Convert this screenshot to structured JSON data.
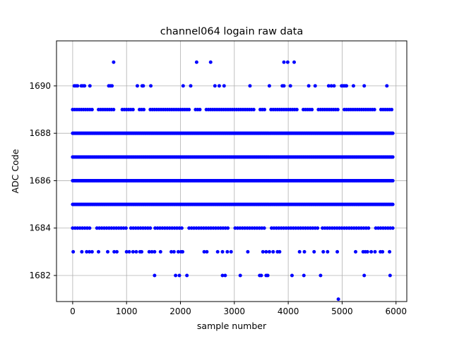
{
  "chart_data": {
    "type": "scatter",
    "title": "channel064 logain raw data",
    "xlabel": "sample number",
    "ylabel": "ADC Code",
    "xlim": [
      -300,
      6200
    ],
    "ylim": [
      1680.9,
      1691.9
    ],
    "xticks": [
      0,
      1000,
      2000,
      3000,
      4000,
      5000,
      6000
    ],
    "yticks": [
      1682,
      1684,
      1686,
      1688,
      1690
    ],
    "grid": true,
    "marker": "circle",
    "series": [
      {
        "color": "#0000ff",
        "dense_levels": [
          {
            "y": 1684,
            "x_start": 0,
            "x_end": 5940,
            "step": 45,
            "gaps": [
              [
                330,
                420
              ],
              [
                1000,
                1060
              ],
              [
                1470,
                1510
              ],
              [
                2070,
                2150
              ],
              [
                2900,
                2970
              ],
              [
                3600,
                3660
              ],
              [
                4580,
                4630
              ],
              [
                5530,
                5580
              ]
            ]
          },
          {
            "y": 1685,
            "x_start": 0,
            "x_end": 5940,
            "step": 20,
            "gaps": []
          },
          {
            "y": 1686,
            "x_start": 0,
            "x_end": 5940,
            "step": 20,
            "gaps": []
          },
          {
            "y": 1687,
            "x_start": 0,
            "x_end": 5940,
            "step": 20,
            "gaps": []
          },
          {
            "y": 1688,
            "x_start": 0,
            "x_end": 5940,
            "step": 20,
            "gaps": []
          },
          {
            "y": 1689,
            "x_start": 0,
            "x_end": 5940,
            "step": 40,
            "gaps": [
              [
                380,
                460
              ],
              [
                770,
                880
              ],
              [
                1160,
                1230
              ],
              [
                1330,
                1400
              ],
              [
                2170,
                2250
              ],
              [
                2390,
                2450
              ],
              [
                3380,
                3450
              ],
              [
                3590,
                3650
              ],
              [
                4180,
                4250
              ],
              [
                4460,
                4520
              ],
              [
                4960,
                5020
              ],
              [
                5620,
                5690
              ]
            ]
          }
        ],
        "points": [
          {
            "x": 30,
            "y": 1690
          },
          {
            "x": 60,
            "y": 1690
          },
          {
            "x": 90,
            "y": 1690
          },
          {
            "x": 160,
            "y": 1690
          },
          {
            "x": 190,
            "y": 1690
          },
          {
            "x": 220,
            "y": 1690
          },
          {
            "x": 320,
            "y": 1690
          },
          {
            "x": 670,
            "y": 1690
          },
          {
            "x": 700,
            "y": 1690
          },
          {
            "x": 730,
            "y": 1690
          },
          {
            "x": 1200,
            "y": 1690
          },
          {
            "x": 1290,
            "y": 1690
          },
          {
            "x": 1310,
            "y": 1690
          },
          {
            "x": 1450,
            "y": 1690
          },
          {
            "x": 2050,
            "y": 1690
          },
          {
            "x": 2190,
            "y": 1690
          },
          {
            "x": 2640,
            "y": 1690
          },
          {
            "x": 2720,
            "y": 1690
          },
          {
            "x": 2810,
            "y": 1690
          },
          {
            "x": 3290,
            "y": 1690
          },
          {
            "x": 3650,
            "y": 1690
          },
          {
            "x": 3890,
            "y": 1690
          },
          {
            "x": 3920,
            "y": 1690
          },
          {
            "x": 4040,
            "y": 1690
          },
          {
            "x": 4380,
            "y": 1690
          },
          {
            "x": 4500,
            "y": 1690
          },
          {
            "x": 4750,
            "y": 1690
          },
          {
            "x": 4800,
            "y": 1690
          },
          {
            "x": 4850,
            "y": 1690
          },
          {
            "x": 4990,
            "y": 1690
          },
          {
            "x": 5020,
            "y": 1690
          },
          {
            "x": 5050,
            "y": 1690
          },
          {
            "x": 5080,
            "y": 1690
          },
          {
            "x": 5210,
            "y": 1690
          },
          {
            "x": 5410,
            "y": 1690
          },
          {
            "x": 5830,
            "y": 1690
          },
          {
            "x": 760,
            "y": 1691
          },
          {
            "x": 2300,
            "y": 1691
          },
          {
            "x": 2560,
            "y": 1691
          },
          {
            "x": 3920,
            "y": 1691
          },
          {
            "x": 3990,
            "y": 1691
          },
          {
            "x": 4110,
            "y": 1691
          },
          {
            "x": 10,
            "y": 1683
          },
          {
            "x": 170,
            "y": 1683
          },
          {
            "x": 260,
            "y": 1683
          },
          {
            "x": 310,
            "y": 1683
          },
          {
            "x": 360,
            "y": 1683
          },
          {
            "x": 480,
            "y": 1683
          },
          {
            "x": 650,
            "y": 1683
          },
          {
            "x": 770,
            "y": 1683
          },
          {
            "x": 820,
            "y": 1683
          },
          {
            "x": 1000,
            "y": 1683
          },
          {
            "x": 1050,
            "y": 1683
          },
          {
            "x": 1120,
            "y": 1683
          },
          {
            "x": 1180,
            "y": 1683
          },
          {
            "x": 1250,
            "y": 1683
          },
          {
            "x": 1280,
            "y": 1683
          },
          {
            "x": 1420,
            "y": 1683
          },
          {
            "x": 1470,
            "y": 1683
          },
          {
            "x": 1520,
            "y": 1683
          },
          {
            "x": 1630,
            "y": 1683
          },
          {
            "x": 1830,
            "y": 1683
          },
          {
            "x": 1880,
            "y": 1683
          },
          {
            "x": 1960,
            "y": 1683
          },
          {
            "x": 2010,
            "y": 1683
          },
          {
            "x": 2040,
            "y": 1683
          },
          {
            "x": 2440,
            "y": 1683
          },
          {
            "x": 2490,
            "y": 1683
          },
          {
            "x": 2690,
            "y": 1683
          },
          {
            "x": 2780,
            "y": 1683
          },
          {
            "x": 2870,
            "y": 1683
          },
          {
            "x": 2940,
            "y": 1683
          },
          {
            "x": 3250,
            "y": 1683
          },
          {
            "x": 3530,
            "y": 1683
          },
          {
            "x": 3590,
            "y": 1683
          },
          {
            "x": 3650,
            "y": 1683
          },
          {
            "x": 3720,
            "y": 1683
          },
          {
            "x": 3800,
            "y": 1683
          },
          {
            "x": 3840,
            "y": 1683
          },
          {
            "x": 4210,
            "y": 1683
          },
          {
            "x": 4300,
            "y": 1683
          },
          {
            "x": 4480,
            "y": 1683
          },
          {
            "x": 4650,
            "y": 1683
          },
          {
            "x": 4730,
            "y": 1683
          },
          {
            "x": 4910,
            "y": 1683
          },
          {
            "x": 5250,
            "y": 1683
          },
          {
            "x": 5390,
            "y": 1683
          },
          {
            "x": 5430,
            "y": 1683
          },
          {
            "x": 5470,
            "y": 1683
          },
          {
            "x": 5540,
            "y": 1683
          },
          {
            "x": 5610,
            "y": 1683
          },
          {
            "x": 5710,
            "y": 1683
          },
          {
            "x": 5750,
            "y": 1683
          },
          {
            "x": 5880,
            "y": 1683
          },
          {
            "x": 1520,
            "y": 1682
          },
          {
            "x": 1910,
            "y": 1682
          },
          {
            "x": 1980,
            "y": 1682
          },
          {
            "x": 2120,
            "y": 1682
          },
          {
            "x": 2780,
            "y": 1682
          },
          {
            "x": 2830,
            "y": 1682
          },
          {
            "x": 3110,
            "y": 1682
          },
          {
            "x": 3470,
            "y": 1682
          },
          {
            "x": 3500,
            "y": 1682
          },
          {
            "x": 3590,
            "y": 1682
          },
          {
            "x": 3620,
            "y": 1682
          },
          {
            "x": 4070,
            "y": 1682
          },
          {
            "x": 4290,
            "y": 1682
          },
          {
            "x": 4600,
            "y": 1682
          },
          {
            "x": 5410,
            "y": 1682
          },
          {
            "x": 5890,
            "y": 1682
          },
          {
            "x": 4930,
            "y": 1681
          }
        ]
      }
    ]
  }
}
